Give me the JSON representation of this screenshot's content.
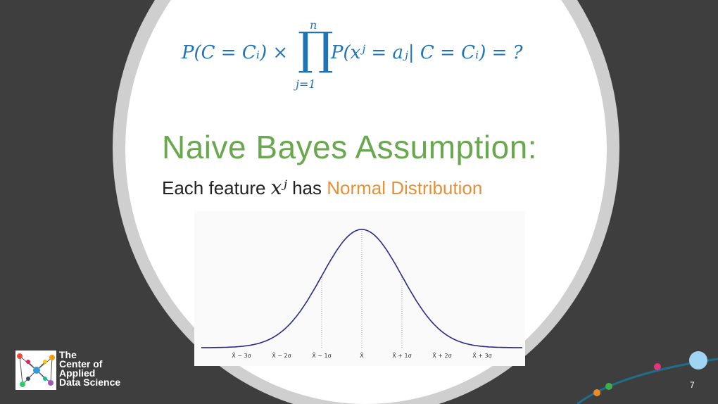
{
  "formula": {
    "left": "P(C = Cᵢ) ×",
    "prod_upper": "n",
    "prod_symbol": "∏",
    "prod_lower": "j=1",
    "right": "P(xʲ = aⱼ| C = Cᵢ) = ?"
  },
  "heading": "Naive Bayes Assumption:",
  "subline": {
    "prefix": "Each feature ",
    "math": "xʲ",
    "middle": " has ",
    "highlight": "Normal Distribution"
  },
  "plot": {
    "tick_labels": [
      "X̄ − 3σ",
      "X̄ − 2σ",
      "X̄ − 1σ",
      "X̄",
      "X̄ + 1σ",
      "X̄ + 2σ",
      "X̄ + 3σ"
    ],
    "curve_color": "#2a2a8a",
    "domain": [
      -4,
      4
    ]
  },
  "logo": {
    "lines": [
      "The",
      "Center of",
      "Applied",
      "Data Science"
    ]
  },
  "page_number": "7",
  "colors": {
    "formula": "#1f74b8",
    "heading": "#6aa84f",
    "highlight": "#e69138",
    "background": "#3e3e3e"
  }
}
